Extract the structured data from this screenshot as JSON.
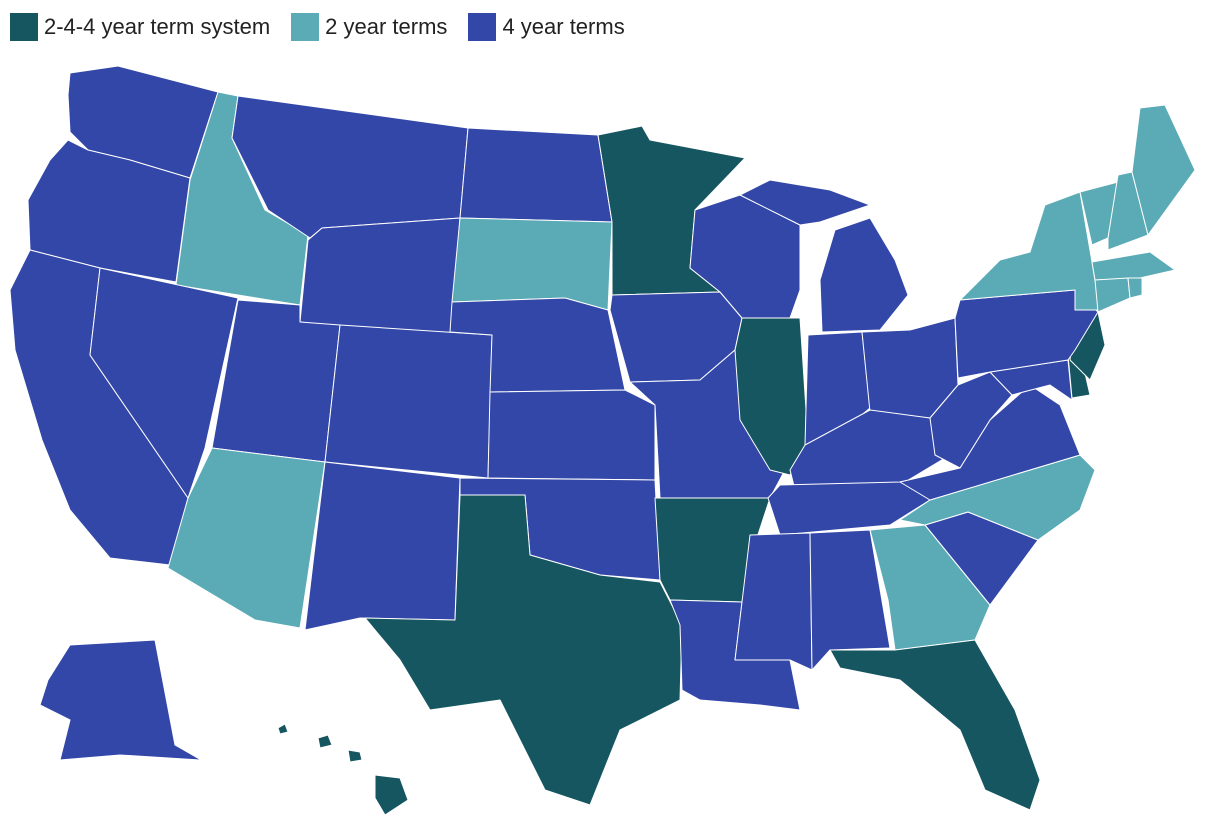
{
  "legend": [
    {
      "key": "244",
      "label": "2-4-4 year term system",
      "color": "#155661"
    },
    {
      "key": "two",
      "label": "2 year terms",
      "color": "#5aabb5"
    },
    {
      "key": "four",
      "label": "4 year terms",
      "color": "#3347a8"
    }
  ],
  "states": [
    {
      "name": "Washington",
      "category": "four"
    },
    {
      "name": "Oregon",
      "category": "four"
    },
    {
      "name": "California",
      "category": "four"
    },
    {
      "name": "Idaho",
      "category": "two"
    },
    {
      "name": "Nevada",
      "category": "four"
    },
    {
      "name": "Montana",
      "category": "four"
    },
    {
      "name": "Wyoming",
      "category": "four"
    },
    {
      "name": "Utah",
      "category": "four"
    },
    {
      "name": "Arizona",
      "category": "two"
    },
    {
      "name": "Colorado",
      "category": "four"
    },
    {
      "name": "New Mexico",
      "category": "four"
    },
    {
      "name": "North Dakota",
      "category": "four"
    },
    {
      "name": "South Dakota",
      "category": "two"
    },
    {
      "name": "Nebraska",
      "category": "four"
    },
    {
      "name": "Kansas",
      "category": "four"
    },
    {
      "name": "Oklahoma",
      "category": "four"
    },
    {
      "name": "Texas",
      "category": "244"
    },
    {
      "name": "Minnesota",
      "category": "244"
    },
    {
      "name": "Iowa",
      "category": "four"
    },
    {
      "name": "Missouri",
      "category": "four"
    },
    {
      "name": "Arkansas",
      "category": "244"
    },
    {
      "name": "Louisiana",
      "category": "four"
    },
    {
      "name": "Wisconsin",
      "category": "four"
    },
    {
      "name": "Illinois",
      "category": "244"
    },
    {
      "name": "Michigan",
      "category": "four"
    },
    {
      "name": "Indiana",
      "category": "four"
    },
    {
      "name": "Ohio",
      "category": "four"
    },
    {
      "name": "Kentucky",
      "category": "four"
    },
    {
      "name": "Tennessee",
      "category": "four"
    },
    {
      "name": "Mississippi",
      "category": "four"
    },
    {
      "name": "Alabama",
      "category": "four"
    },
    {
      "name": "Georgia",
      "category": "two"
    },
    {
      "name": "Florida",
      "category": "244"
    },
    {
      "name": "South Carolina",
      "category": "four"
    },
    {
      "name": "North Carolina",
      "category": "two"
    },
    {
      "name": "Virginia",
      "category": "four"
    },
    {
      "name": "West Virginia",
      "category": "four"
    },
    {
      "name": "Maryland",
      "category": "four"
    },
    {
      "name": "Delaware",
      "category": "244"
    },
    {
      "name": "New Jersey",
      "category": "244"
    },
    {
      "name": "Pennsylvania",
      "category": "four"
    },
    {
      "name": "New York",
      "category": "two"
    },
    {
      "name": "Vermont",
      "category": "two"
    },
    {
      "name": "New Hampshire",
      "category": "two"
    },
    {
      "name": "Maine",
      "category": "two"
    },
    {
      "name": "Massachusetts",
      "category": "two"
    },
    {
      "name": "Connecticut",
      "category": "two"
    },
    {
      "name": "Rhode Island",
      "category": "two"
    },
    {
      "name": "Alaska",
      "category": "four"
    },
    {
      "name": "Hawaii",
      "category": "244"
    }
  ]
}
